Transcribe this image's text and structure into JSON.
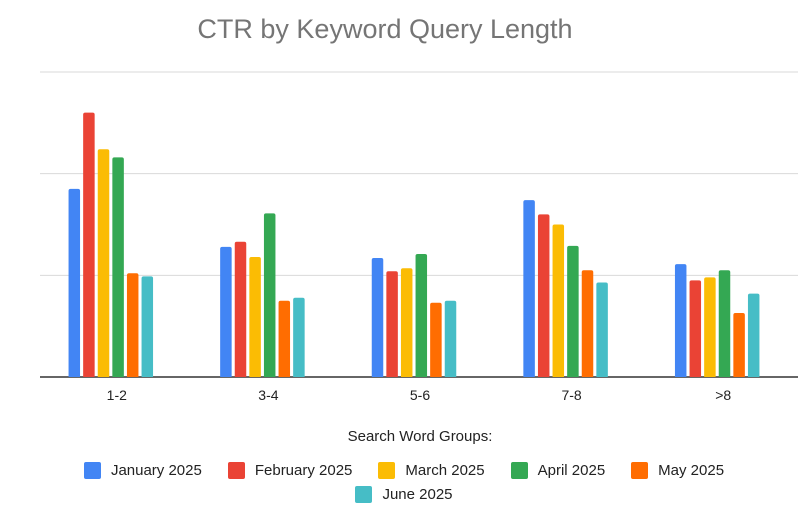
{
  "chart_data": {
    "type": "bar",
    "title": "CTR by Keyword Query Length",
    "xlabel": "Search Word Groups:",
    "ylabel": "",
    "categories": [
      "1-2",
      "3-4",
      "5-6",
      "7-8",
      ">8"
    ],
    "ylim": [
      0,
      3
    ],
    "grid": true,
    "legend_position": "bottom",
    "series": [
      {
        "name": "January 2025",
        "color": "#4285F4",
        "values": [
          1.85,
          1.28,
          1.17,
          1.74,
          1.11
        ]
      },
      {
        "name": "February 2025",
        "color": "#EA4335",
        "values": [
          2.6,
          1.33,
          1.04,
          1.6,
          0.95
        ]
      },
      {
        "name": "March 2025",
        "color": "#FBBC04",
        "values": [
          2.24,
          1.18,
          1.07,
          1.5,
          0.98
        ]
      },
      {
        "name": "April 2025",
        "color": "#34A853",
        "values": [
          2.16,
          1.61,
          1.21,
          1.29,
          1.05
        ]
      },
      {
        "name": "May 2025",
        "color": "#FF6D01",
        "values": [
          1.02,
          0.75,
          0.73,
          1.05,
          0.63
        ]
      },
      {
        "name": "June 2025",
        "color": "#46BDC6",
        "values": [
          0.99,
          0.78,
          0.75,
          0.93,
          0.82
        ]
      }
    ]
  }
}
